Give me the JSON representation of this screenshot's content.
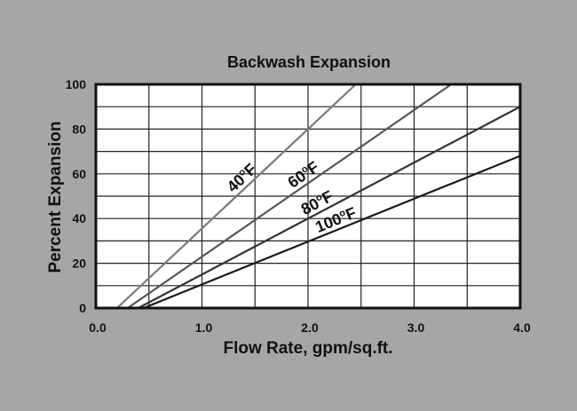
{
  "chart_data": {
    "type": "line",
    "title": "Backwash Expansion",
    "xlabel": "Flow Rate, gpm/sq.ft.",
    "ylabel": "Percent Expansion",
    "xlim": [
      0,
      4.0
    ],
    "ylim": [
      0,
      100
    ],
    "x_ticks": [
      "0.0",
      "1.0",
      "2.0",
      "3.0",
      "4.0"
    ],
    "y_ticks": [
      "0",
      "20",
      "40",
      "60",
      "80",
      "100"
    ],
    "grid": true,
    "series": [
      {
        "name": "40°F",
        "label_main": "40",
        "label_sup": "o",
        "label_unit": "F",
        "color": "#7a7a7a",
        "x": [
          0.2,
          2.45
        ],
        "y": [
          0,
          100
        ]
      },
      {
        "name": "60°F",
        "label_main": "60",
        "label_sup": "o",
        "label_unit": "F",
        "color": "#555555",
        "x": [
          0.3,
          3.35
        ],
        "y": [
          0,
          100
        ]
      },
      {
        "name": "80°F",
        "label_main": "80",
        "label_sup": "o",
        "label_unit": "F",
        "color": "#333333",
        "x": [
          0.4,
          4.0
        ],
        "y": [
          0,
          90
        ]
      },
      {
        "name": "100°F",
        "label_main": "100",
        "label_sup": "o",
        "label_unit": "F",
        "color": "#1a1a1a",
        "x": [
          0.45,
          4.0
        ],
        "y": [
          0,
          68
        ]
      }
    ]
  }
}
